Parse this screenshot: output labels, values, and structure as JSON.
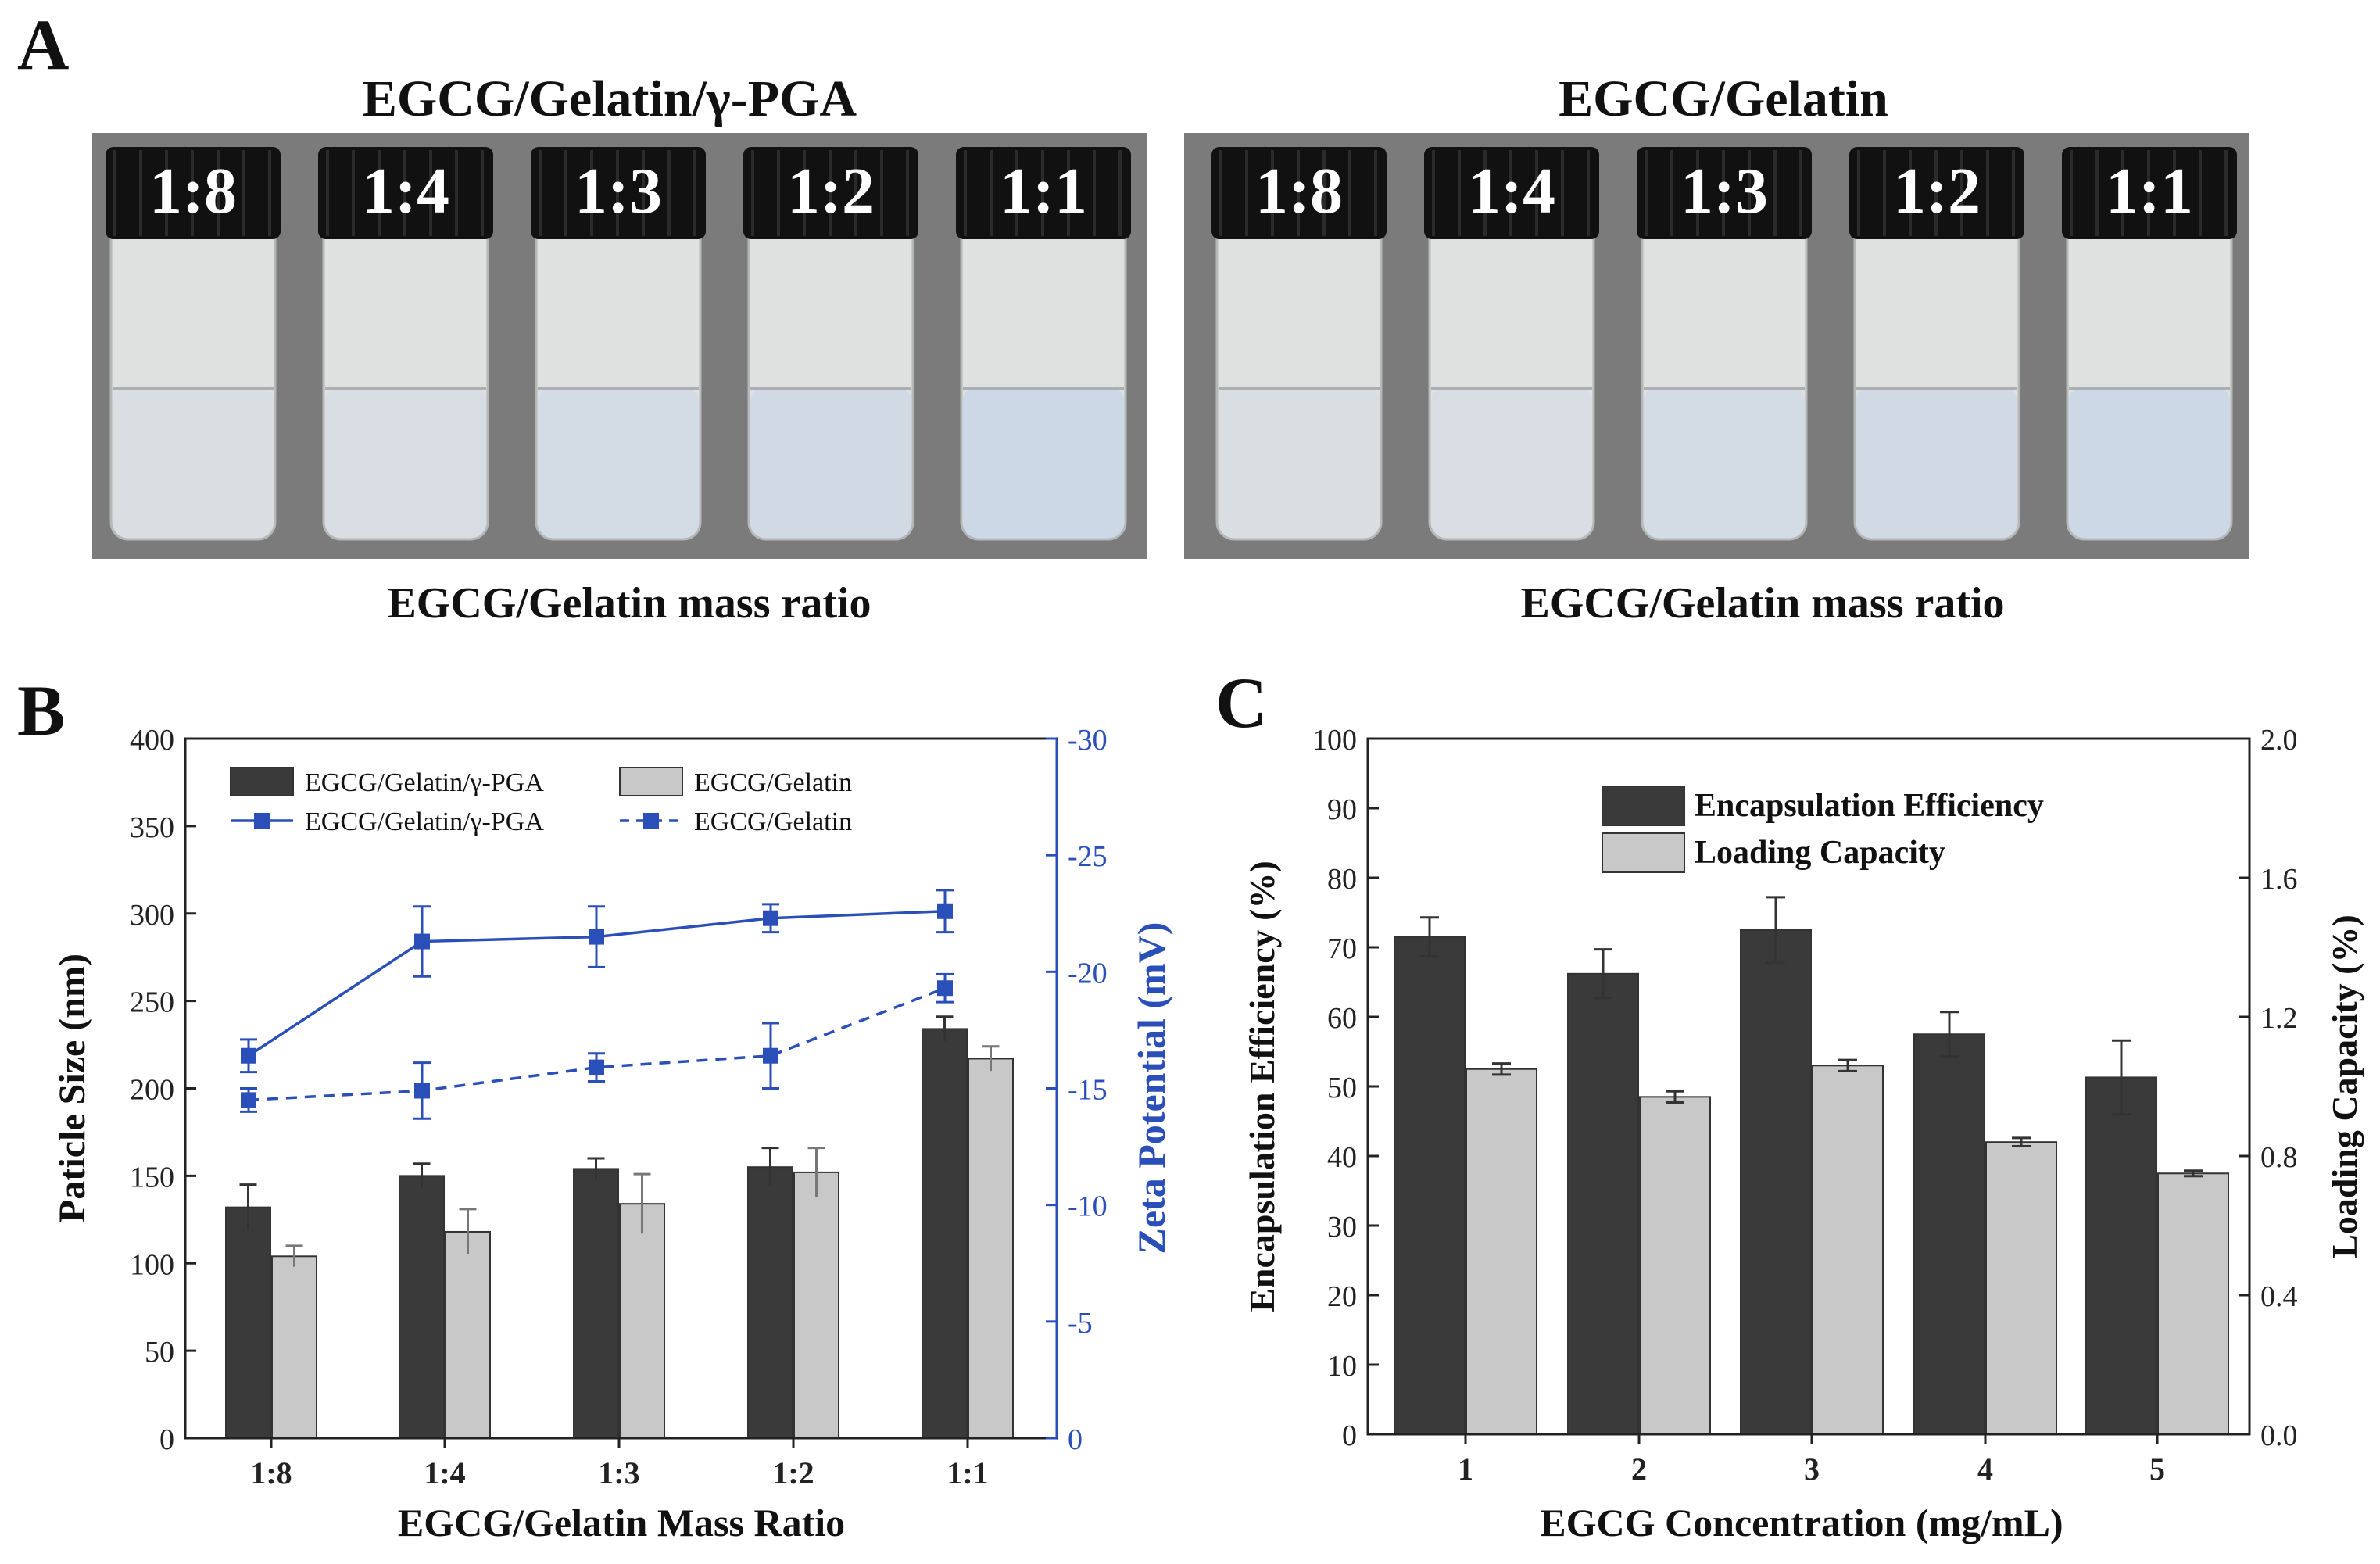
{
  "panel_a": {
    "letter": "A",
    "left_title": "EGCG/Gelatin/γ-PGA",
    "right_title": "EGCG/Gelatin",
    "left_caption": "EGCG/Gelatin mass ratio",
    "right_caption": "EGCG/Gelatin mass ratio",
    "left_vials": [
      "1:8",
      "1:4",
      "1:3",
      "1:2",
      "1:1"
    ],
    "right_vials": [
      "1:8",
      "1:4",
      "1:3",
      "1:2",
      "1:1"
    ],
    "colors": {
      "photo_bg": "#7b7b7b",
      "cap": "#111111",
      "glass": "#dfe1e1",
      "liquid_tint": "#c9d6e6"
    }
  },
  "panel_b": {
    "letter": "B"
  },
  "panel_c": {
    "letter": "C"
  },
  "chart_data": [
    {
      "id": "B",
      "type": "bar",
      "categories": [
        "1:8",
        "1:4",
        "1:3",
        "1:2",
        "1:1"
      ],
      "xlabel": "EGCG/Gelatin Mass Ratio",
      "ylabel": "Paticle Size (nm)",
      "y2label": "Zeta Potential (mV)",
      "ylim": [
        0,
        400
      ],
      "yticks": [
        "0",
        "50",
        "100",
        "150",
        "200",
        "250",
        "300",
        "350",
        "400"
      ],
      "y2lim": [
        0,
        -30
      ],
      "y2ticks": [
        "0",
        "-5",
        "-10",
        "-15",
        "-20",
        "-25",
        "-30"
      ],
      "legend_position": "top-left",
      "series": [
        {
          "name": "EGCG/Gelatin/γ-PGA",
          "kind": "bar",
          "axis": "left",
          "color": "#3a3a3a",
          "values": [
            132,
            150,
            154,
            155,
            234
          ],
          "errors": [
            13,
            7,
            6,
            11,
            7
          ]
        },
        {
          "name": "EGCG/Gelatin",
          "kind": "bar",
          "axis": "left",
          "color": "#c8c8c8",
          "values": [
            104,
            118,
            134,
            152,
            217
          ],
          "errors": [
            6,
            13,
            17,
            14,
            7
          ]
        },
        {
          "name": "EGCG/Gelatin/γ-PGA",
          "kind": "line",
          "style": "solid",
          "axis": "right",
          "color": "#2a4fb8",
          "values": [
            -16.4,
            -21.3,
            -21.5,
            -22.3,
            -22.6
          ],
          "errors": [
            0.7,
            1.5,
            1.3,
            0.6,
            0.9
          ]
        },
        {
          "name": "EGCG/Gelatin",
          "kind": "line",
          "style": "dashed",
          "axis": "right",
          "color": "#2a4fb8",
          "values": [
            -14.5,
            -14.9,
            -15.9,
            -16.4,
            -19.3
          ],
          "errors": [
            0.5,
            1.2,
            0.6,
            1.4,
            0.6
          ]
        }
      ]
    },
    {
      "id": "C",
      "type": "bar",
      "categories": [
        "1",
        "2",
        "3",
        "4",
        "5"
      ],
      "xlabel": "EGCG Concentration (mg/mL)",
      "ylabel": "Encapsulation Efficiency (%)",
      "y2label": "Loading Capacity (%)",
      "ylim": [
        0,
        100
      ],
      "yticks": [
        "0",
        "10",
        "20",
        "30",
        "40",
        "50",
        "60",
        "70",
        "80",
        "90",
        "100"
      ],
      "y2lim": [
        0,
        2.0
      ],
      "y2ticks": [
        "0.0",
        "0.4",
        "0.8",
        "1.2",
        "1.6",
        "2.0"
      ],
      "legend_position": "top-center",
      "series": [
        {
          "name": "Encapsulation Efficiency",
          "kind": "bar",
          "axis": "left",
          "color": "#3a3a3a",
          "values": [
            71.5,
            66.2,
            72.5,
            57.5,
            51.3
          ],
          "errors": [
            2.8,
            3.5,
            4.7,
            3.2,
            5.3
          ]
        },
        {
          "name": "Loading Capacity",
          "kind": "bar",
          "axis": "right",
          "color": "#c8c8c8",
          "values": [
            1.05,
            0.97,
            1.06,
            0.84,
            0.75
          ],
          "errors": [
            0.016,
            0.016,
            0.016,
            0.012,
            0.008
          ]
        }
      ]
    }
  ]
}
